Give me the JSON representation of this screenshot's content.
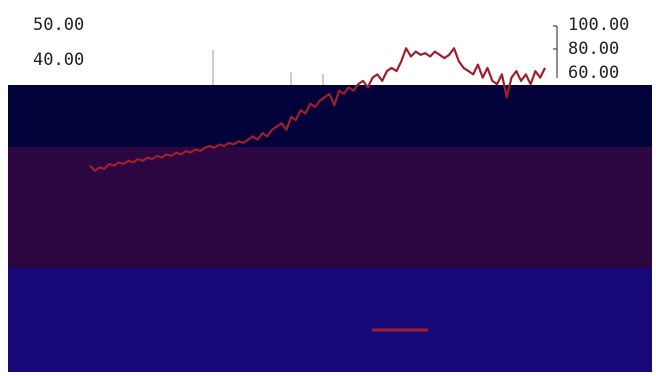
{
  "chart_data": {
    "type": "line",
    "title": "",
    "xlabel": "",
    "ylabel": "",
    "y_left_ticks": [
      "50.00",
      "40.00"
    ],
    "y_right_ticks": [
      "100.00",
      "80.00",
      "60.00"
    ],
    "y_right_lim": [
      0,
      100
    ],
    "grid": false,
    "legend_position": "bottom",
    "series": [
      {
        "color": "#a01e2e",
        "axis": "right",
        "values": [
          18,
          15,
          17,
          16,
          19,
          18,
          20,
          19,
          21,
          20,
          22,
          21,
          23,
          22,
          24,
          23,
          25,
          24,
          26,
          25,
          27,
          26,
          28,
          27,
          29,
          30,
          29,
          31,
          30,
          32,
          31,
          33,
          32,
          34,
          36,
          34,
          38,
          36,
          40,
          42,
          44,
          40,
          48,
          46,
          52,
          50,
          56,
          54,
          58,
          60,
          62,
          55,
          64,
          62,
          66,
          64,
          68,
          70,
          66,
          72,
          74,
          70,
          76,
          78,
          76,
          82,
          90,
          85,
          88,
          86,
          87,
          85,
          88,
          86,
          84,
          86,
          90,
          82,
          78,
          76,
          74,
          80,
          72,
          78,
          70,
          68,
          74,
          60,
          72,
          76,
          70,
          74,
          68,
          76,
          72,
          78
        ]
      }
    ]
  },
  "colors": {
    "band_top": "#02013a",
    "band_middle": "#2c0640",
    "band_bottom": "#170a78",
    "line": "#a01e2e"
  }
}
